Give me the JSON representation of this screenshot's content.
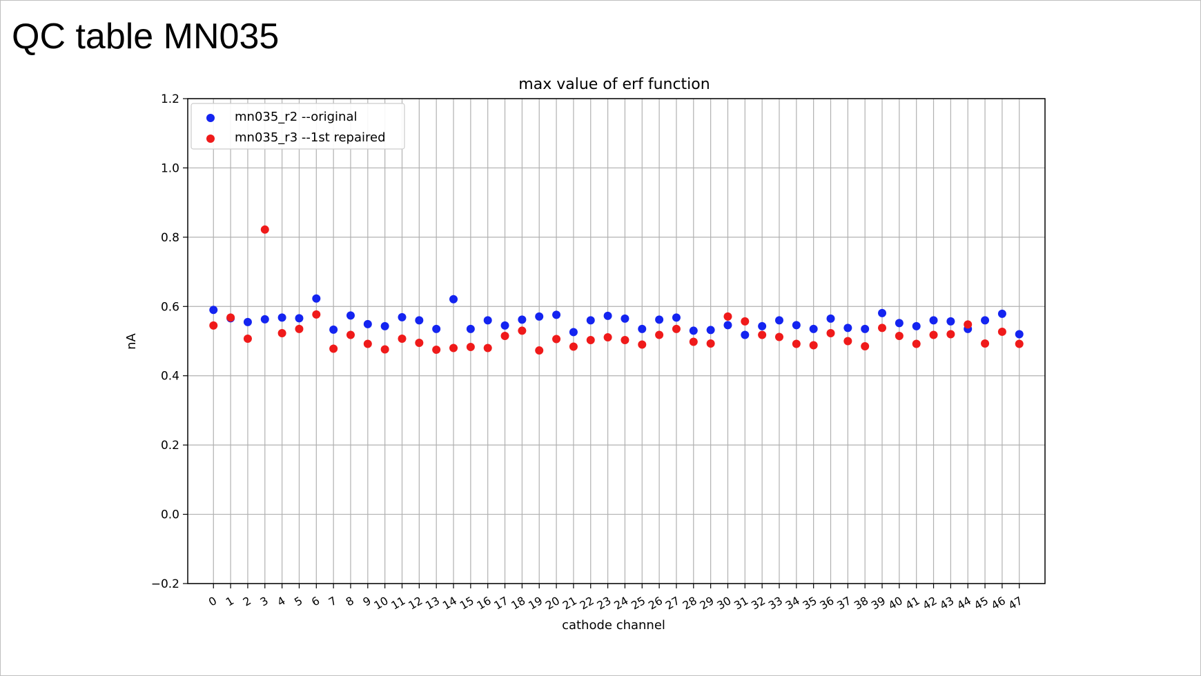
{
  "slide": {
    "title": "QC table MN035"
  },
  "chart_data": {
    "type": "scatter",
    "title": "max value of erf function",
    "xlabel": "cathode channel",
    "ylabel": "nA",
    "xlim": [
      -1.5,
      48.5
    ],
    "ylim": [
      -0.2,
      1.2
    ],
    "x": [
      0,
      1,
      2,
      3,
      4,
      5,
      6,
      7,
      8,
      9,
      10,
      11,
      12,
      13,
      14,
      15,
      16,
      17,
      18,
      19,
      20,
      21,
      22,
      23,
      24,
      25,
      26,
      27,
      28,
      29,
      30,
      31,
      32,
      33,
      34,
      35,
      36,
      37,
      38,
      39,
      40,
      41,
      42,
      43,
      44,
      45,
      46,
      47
    ],
    "x_tick_labels": [
      "0",
      "1",
      "2",
      "3",
      "4",
      "5",
      "6",
      "7",
      "8",
      "9",
      "10",
      "11",
      "12",
      "13",
      "14",
      "15",
      "16",
      "17",
      "18",
      "19",
      "20",
      "21",
      "22",
      "23",
      "24",
      "25",
      "26",
      "27",
      "28",
      "29",
      "30",
      "31",
      "32",
      "33",
      "34",
      "35",
      "36",
      "37",
      "38",
      "39",
      "40",
      "41",
      "42",
      "43",
      "44",
      "45",
      "46",
      "47"
    ],
    "y_ticks": [
      -0.2,
      0.0,
      0.2,
      0.4,
      0.6,
      0.8,
      1.0,
      1.2
    ],
    "y_tick_labels": [
      "−0.2",
      "0.0",
      "0.2",
      "0.4",
      "0.6",
      "0.8",
      "1.0",
      "1.2"
    ],
    "grid": true,
    "legend_position": "top-left",
    "series": [
      {
        "name": "mn035_r2 --original",
        "color": "#1424f0",
        "values": [
          0.59,
          0.566,
          0.555,
          0.563,
          0.568,
          0.566,
          0.623,
          0.533,
          0.574,
          0.549,
          0.543,
          0.569,
          0.56,
          0.535,
          0.621,
          0.535,
          0.56,
          0.545,
          0.562,
          0.571,
          0.576,
          0.526,
          0.56,
          0.573,
          0.565,
          0.535,
          0.562,
          0.568,
          0.53,
          0.532,
          0.546,
          0.518,
          0.543,
          0.56,
          0.546,
          0.535,
          0.565,
          0.538,
          0.535,
          0.581,
          0.552,
          0.543,
          0.56,
          0.557,
          0.535,
          0.56,
          0.579,
          0.52
        ]
      },
      {
        "name": "mn035_r3 --1st repaired",
        "color": "#ef1a1a",
        "values": [
          0.545,
          0.568,
          0.507,
          0.822,
          0.523,
          0.535,
          0.577,
          0.478,
          0.518,
          0.492,
          0.476,
          0.507,
          0.495,
          0.475,
          0.48,
          0.483,
          0.48,
          0.515,
          0.53,
          0.473,
          0.506,
          0.484,
          0.503,
          0.511,
          0.503,
          0.49,
          0.518,
          0.535,
          0.498,
          0.493,
          0.571,
          0.557,
          0.518,
          0.512,
          0.492,
          0.488,
          0.523,
          0.5,
          0.485,
          0.538,
          0.515,
          0.492,
          0.518,
          0.52,
          0.548,
          0.493,
          0.527,
          0.492
        ]
      }
    ]
  }
}
